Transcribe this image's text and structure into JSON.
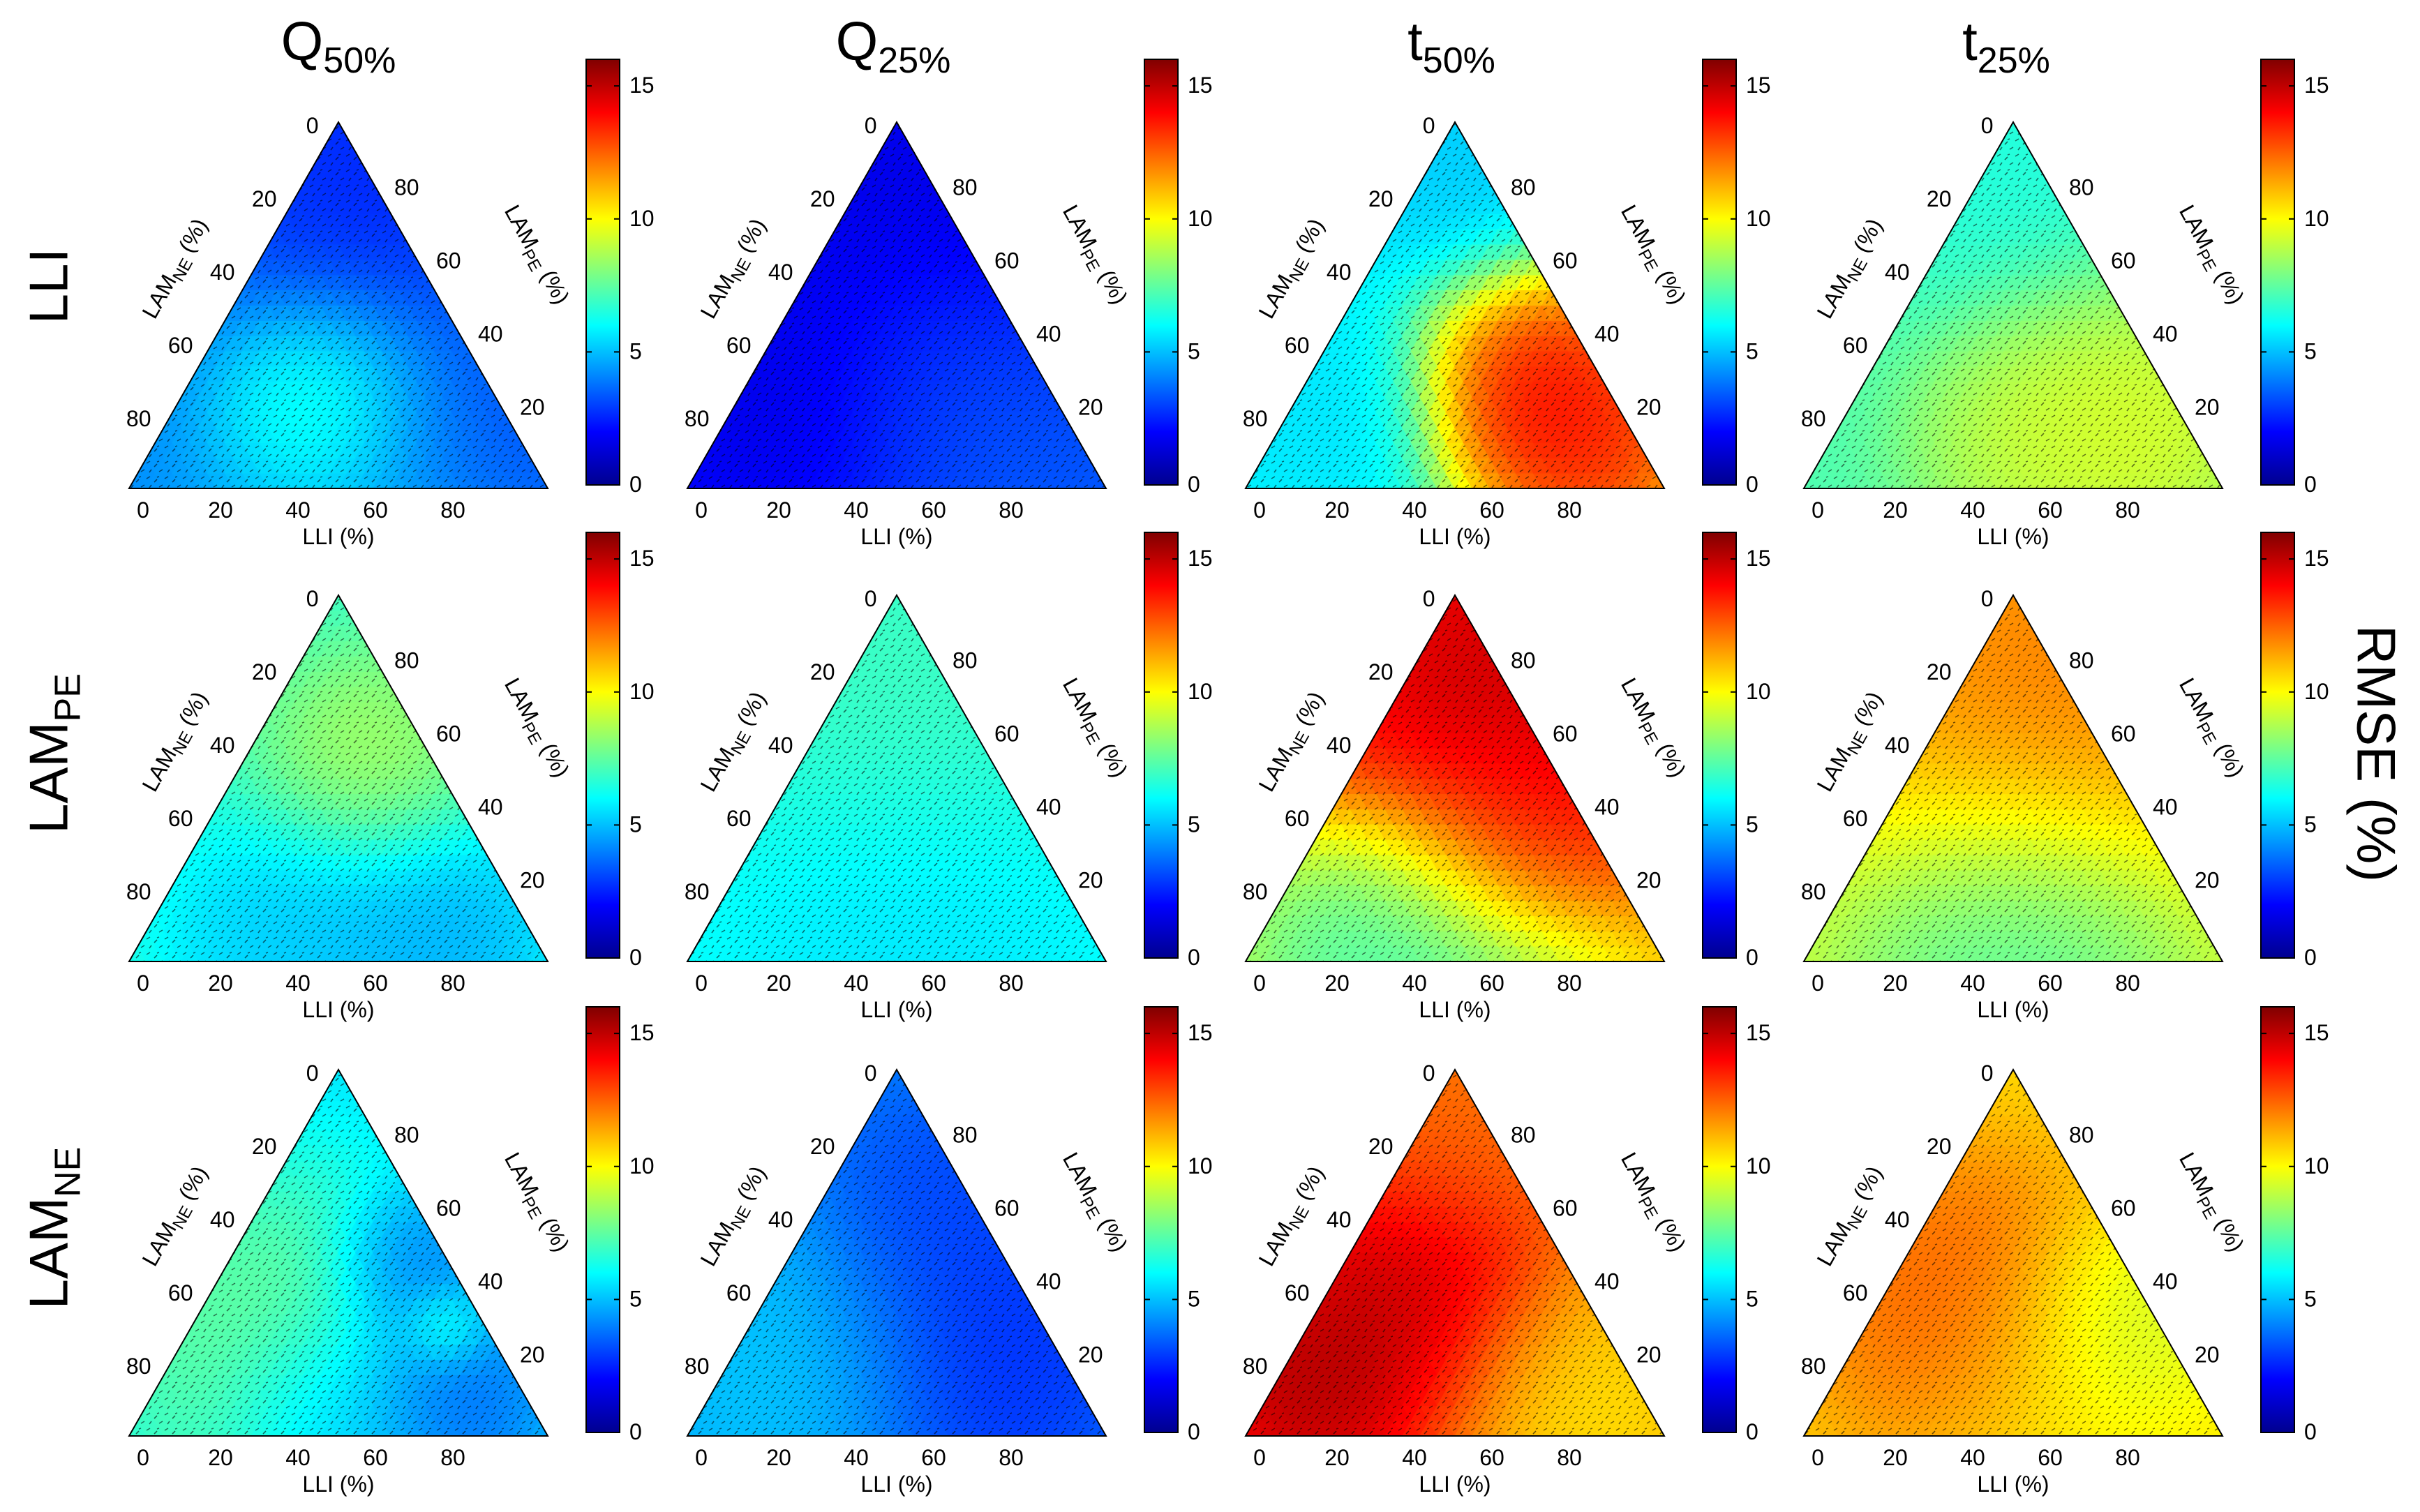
{
  "figure": {
    "column_titles": [
      {
        "main": "Q",
        "sub": "50%"
      },
      {
        "main": "Q",
        "sub": "25%"
      },
      {
        "main": "t",
        "sub": "50%"
      },
      {
        "main": "t",
        "sub": "25%"
      }
    ],
    "row_titles": [
      {
        "main": "LLI",
        "sub": ""
      },
      {
        "main": "LAM",
        "sub": "PE"
      },
      {
        "main": "LAM",
        "sub": "NE"
      }
    ],
    "colorbar_label": "RMSE (%)",
    "colors": {
      "ramp": [
        "#00008f",
        "#0000ff",
        "#0080ff",
        "#00ffff",
        "#80ff80",
        "#ffff00",
        "#ff8000",
        "#ff0000",
        "#800000"
      ]
    }
  },
  "chart_data": {
    "type": "heatmap",
    "subtype": "ternary-contour-grid",
    "rows": 3,
    "cols": 4,
    "colorbar": {
      "min": 0,
      "max": 16,
      "ticks": [
        0,
        5,
        10,
        15
      ],
      "tick_labels": [
        "0",
        "5",
        "10",
        "15"
      ],
      "colormap": "jet"
    },
    "axes": {
      "bottom": {
        "label": "LLI (%)",
        "ticks": [
          "0",
          "20",
          "40",
          "60",
          "80"
        ]
      },
      "left": {
        "label_main": "LAM",
        "label_sub": "NE",
        "label_suffix": " (%)",
        "ticks": [
          "0",
          "20",
          "40",
          "60",
          "80"
        ]
      },
      "right": {
        "label_main": "LAM",
        "label_sub": "PE",
        "label_suffix": " (%)",
        "ticks": [
          "80",
          "60",
          "40",
          "20"
        ]
      }
    },
    "panels": [
      {
        "row": "LLI",
        "metric": "Q50%",
        "base": 4.2,
        "blobs": [
          {
            "v": 2.0,
            "u": 0.3,
            "w": 0.7,
            "r": 0.35
          },
          {
            "v": 2.5,
            "u": 0.05,
            "w": 0.95,
            "r": 0.25
          },
          {
            "v": 2.0,
            "u": 0.85,
            "w": 0.15,
            "r": 0.28
          },
          {
            "v": 8.0,
            "u": 0.35,
            "w": 0.25,
            "r": 0.2
          },
          {
            "v": 5.2,
            "u": 0.7,
            "w": 0.1,
            "r": 0.4
          }
        ]
      },
      {
        "row": "LLI",
        "metric": "Q25%",
        "base": 2.6,
        "blobs": [
          {
            "v": 1.2,
            "u": 0.25,
            "w": 0.7,
            "r": 0.45
          },
          {
            "v": 1.3,
            "u": 0.15,
            "w": 0.2,
            "r": 0.3
          },
          {
            "v": 3.8,
            "u": 0.8,
            "w": 0.1,
            "r": 0.4
          },
          {
            "v": 3.4,
            "u": 0.5,
            "w": 0.25,
            "r": 0.25
          }
        ]
      },
      {
        "row": "LLI",
        "metric": "t50%",
        "base": 6.0,
        "blobs": [
          {
            "v": 15.5,
            "u": 0.65,
            "w": 0.2,
            "r": 0.22
          },
          {
            "v": 14.5,
            "u": 0.55,
            "w": 0.3,
            "r": 0.22
          },
          {
            "v": 14.0,
            "u": 0.85,
            "w": 0.05,
            "r": 0.18
          },
          {
            "v": 5.0,
            "u": 0.05,
            "w": 0.9,
            "r": 0.25
          },
          {
            "v": 5.5,
            "u": 0.1,
            "w": 0.2,
            "r": 0.22
          }
        ]
      },
      {
        "row": "LLI",
        "metric": "t25%",
        "base": 7.2,
        "blobs": [
          {
            "v": 10.0,
            "u": 0.7,
            "w": 0.2,
            "r": 0.3
          },
          {
            "v": 9.5,
            "u": 0.5,
            "w": 0.15,
            "r": 0.25
          },
          {
            "v": 6.3,
            "u": 0.05,
            "w": 0.9,
            "r": 0.35
          }
        ]
      },
      {
        "row": "LAM_PE",
        "metric": "Q50%",
        "base": 6.8,
        "blobs": [
          {
            "v": 9.0,
            "u": 0.3,
            "w": 0.55,
            "r": 0.22
          },
          {
            "v": 4.2,
            "u": 0.7,
            "w": 0.05,
            "r": 0.25
          },
          {
            "v": 4.8,
            "u": 0.35,
            "w": 0.05,
            "r": 0.25
          }
        ]
      },
      {
        "row": "LAM_PE",
        "metric": "Q25%",
        "base": 6.2,
        "blobs": [
          {
            "v": 7.2,
            "u": 0.15,
            "w": 0.75,
            "r": 0.4
          },
          {
            "v": 5.4,
            "u": 0.5,
            "w": 0.05,
            "r": 0.35
          }
        ]
      },
      {
        "row": "LAM_PE",
        "metric": "t50%",
        "base": 11.0,
        "blobs": [
          {
            "v": 16.0,
            "u": 0.2,
            "w": 0.75,
            "r": 0.42
          },
          {
            "v": 14.5,
            "u": 0.5,
            "w": 0.35,
            "r": 0.22
          },
          {
            "v": 6.0,
            "u": 0.5,
            "w": 0.02,
            "r": 0.3
          },
          {
            "v": 6.5,
            "u": 0.2,
            "w": 0.05,
            "r": 0.25
          }
        ]
      },
      {
        "row": "LAM_PE",
        "metric": "t25%",
        "base": 9.5,
        "blobs": [
          {
            "v": 12.8,
            "u": 0.2,
            "w": 0.75,
            "r": 0.45
          },
          {
            "v": 6.5,
            "u": 0.5,
            "w": 0.02,
            "r": 0.35
          }
        ]
      },
      {
        "row": "LAM_NE",
        "metric": "Q50%",
        "base": 5.5,
        "blobs": [
          {
            "v": 8.3,
            "u": 0.2,
            "w": 0.25,
            "r": 0.35
          },
          {
            "v": 2.8,
            "u": 0.7,
            "w": 0.1,
            "r": 0.2
          },
          {
            "v": 3.2,
            "u": 0.45,
            "w": 0.45,
            "r": 0.15
          },
          {
            "v": 7.5,
            "u": 0.6,
            "w": 0.3,
            "r": 0.08
          },
          {
            "v": 4.5,
            "u": 0.45,
            "w": 0.05,
            "r": 0.2
          }
        ]
      },
      {
        "row": "LAM_NE",
        "metric": "Q25%",
        "base": 4.2,
        "blobs": [
          {
            "v": 2.2,
            "u": 0.6,
            "w": 0.2,
            "r": 0.3
          },
          {
            "v": 2.8,
            "u": 0.3,
            "w": 0.6,
            "r": 0.25
          },
          {
            "v": 5.5,
            "u": 0.15,
            "w": 0.2,
            "r": 0.3
          }
        ]
      },
      {
        "row": "LAM_NE",
        "metric": "t50%",
        "base": 11.5,
        "blobs": [
          {
            "v": 16.0,
            "u": 0.2,
            "w": 0.35,
            "r": 0.3
          },
          {
            "v": 16.0,
            "u": 0.08,
            "w": 0.12,
            "r": 0.2
          },
          {
            "v": 10.0,
            "u": 0.7,
            "w": 0.1,
            "r": 0.25
          },
          {
            "v": 12.5,
            "u": 0.1,
            "w": 0.85,
            "r": 0.25
          }
        ]
      },
      {
        "row": "LAM_NE",
        "metric": "t25%",
        "base": 10.5,
        "blobs": [
          {
            "v": 13.2,
            "u": 0.2,
            "w": 0.35,
            "r": 0.3
          },
          {
            "v": 8.5,
            "u": 0.6,
            "w": 0.3,
            "r": 0.2
          },
          {
            "v": 10.0,
            "u": 0.6,
            "w": 0.1,
            "r": 0.3
          }
        ]
      }
    ]
  }
}
